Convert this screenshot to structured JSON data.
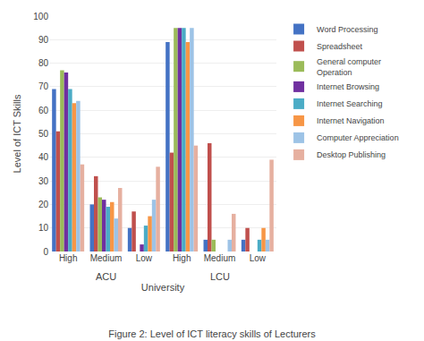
{
  "chart_data": {
    "type": "bar",
    "title": "Figure 2: Level of ICT literacy skills of Lecturers",
    "categories": [
      "High",
      "Medium",
      "Low",
      "High",
      "Medium",
      "Low"
    ],
    "annotations": [
      "ACU",
      "LCU"
    ],
    "series": [
      {
        "name": "Word Processing",
        "color": "#4472C4",
        "values": [
          69,
          20,
          10,
          89,
          5,
          5
        ]
      },
      {
        "name": "Spreadsheet",
        "color": "#C0504D",
        "values": [
          51,
          32,
          17,
          42,
          46,
          10
        ]
      },
      {
        "name": "General computer\nOperation",
        "color": "#9BBB59",
        "values": [
          77,
          23,
          0,
          95,
          5,
          0
        ]
      },
      {
        "name": "Internet Browsing",
        "color": "#7030A0",
        "values": [
          76,
          22,
          3,
          95,
          0,
          0
        ]
      },
      {
        "name": "Internet Searching",
        "color": "#4BACC6",
        "values": [
          69,
          19,
          11,
          95,
          0,
          5
        ]
      },
      {
        "name": "Internet Navigation",
        "color": "#F79646",
        "values": [
          63,
          21,
          15,
          89,
          0,
          10
        ]
      },
      {
        "name": "Computer Appreciation",
        "color": "#9DC3E6",
        "values": [
          64,
          14,
          22,
          95,
          5,
          5
        ]
      },
      {
        "name": "Desktop Publishing",
        "color": "#E6B0A0",
        "values": [
          37,
          27,
          36,
          45,
          16,
          39
        ]
      }
    ],
    "xlabel": "University",
    "ylabel": "Level of ICT Skills",
    "ylim": [
      0,
      100
    ],
    "yticks": [
      0,
      10,
      20,
      30,
      40,
      50,
      60,
      70,
      80,
      90,
      100
    ],
    "grid": true,
    "legend": "right"
  }
}
